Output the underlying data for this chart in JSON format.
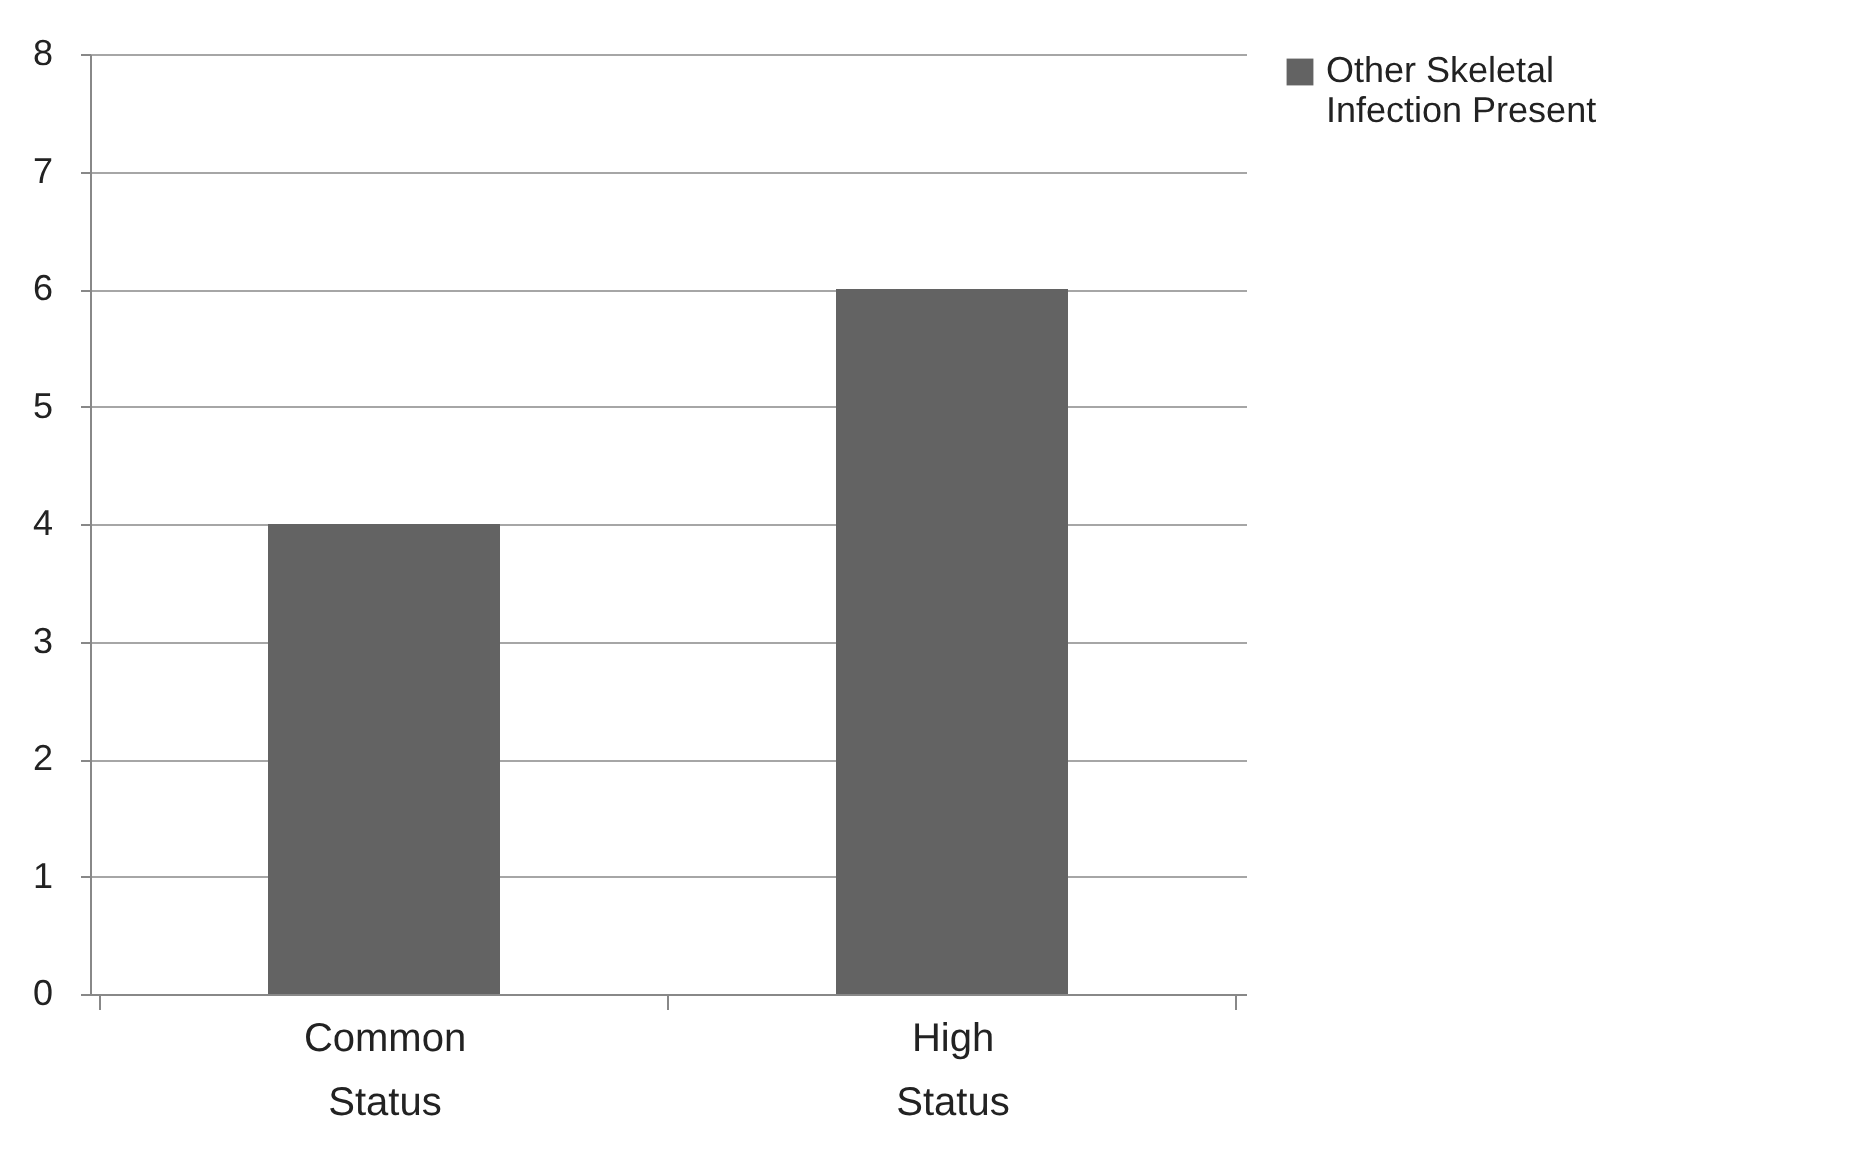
{
  "chart_data": {
    "type": "bar",
    "categories": [
      "Common Status",
      "High Status"
    ],
    "series": [
      {
        "name": "Other Skeletal Infection Present",
        "color": "#636363",
        "values": [
          4,
          6
        ]
      }
    ],
    "ylim": [
      0,
      8
    ],
    "yticks": [
      0,
      1,
      2,
      3,
      4,
      5,
      6,
      7,
      8
    ],
    "grid": "y",
    "legend": "right"
  }
}
